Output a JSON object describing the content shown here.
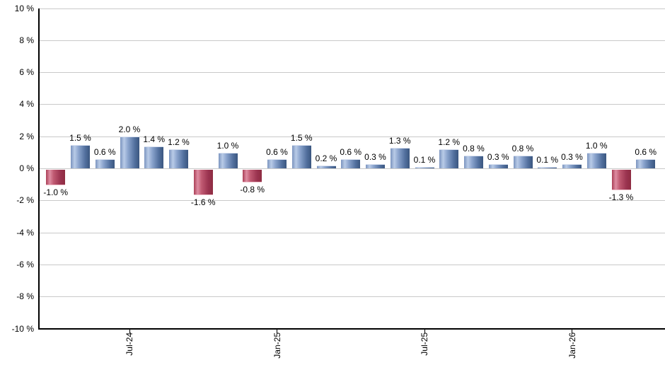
{
  "chart_data": {
    "type": "bar",
    "title": "",
    "xlabel": "",
    "ylabel": "",
    "ylim": [
      -10,
      10
    ],
    "y_tick_step": 2,
    "grid": true,
    "legend_position": "none",
    "y_tick_labels": [
      "10 %",
      "8 %",
      "6 %",
      "4 %",
      "2 %",
      "0 %",
      "-2 %",
      "-4 %",
      "-6 %",
      "-8 %",
      "-10 %"
    ],
    "values": [
      -1.0,
      1.5,
      0.6,
      2.0,
      1.4,
      1.2,
      -1.6,
      1.0,
      -0.8,
      0.6,
      1.5,
      0.2,
      0.6,
      0.3,
      1.3,
      0.1,
      1.2,
      0.8,
      0.3,
      0.8,
      0.1,
      0.3,
      1.0,
      -1.3,
      0.6
    ],
    "data_labels": [
      "-1.0 %",
      "1.5 %",
      "0.6 %",
      "2.0 %",
      "1.4 %",
      "1.2 %",
      "-1.6 %",
      "1.0 %",
      "-0.8 %",
      "0.6 %",
      "1.5 %",
      "0.2 %",
      "0.6 %",
      "0.3 %",
      "1.3 %",
      "0.1 %",
      "1.2 %",
      "0.8 %",
      "0.3 %",
      "0.8 %",
      "0.1 %",
      "0.3 %",
      "1.0 %",
      "-1.3 %",
      "0.6 %"
    ],
    "x_ticks": [
      {
        "label": "Jul-24",
        "bar_index": 3
      },
      {
        "label": "Jan-25",
        "bar_index": 9
      },
      {
        "label": "Jul-25",
        "bar_index": 15
      },
      {
        "label": "Jan-26",
        "bar_index": 21
      }
    ],
    "colors": {
      "positive_bar_light": "#b9cbe7",
      "positive_bar_dark": "#3a567f",
      "negative_bar_light": "#de8da2",
      "negative_bar_dark": "#8e2c42",
      "gridline": "#c9c9c9",
      "axis": "#000000",
      "label_text": "#000000",
      "background": "#ffffff"
    }
  }
}
